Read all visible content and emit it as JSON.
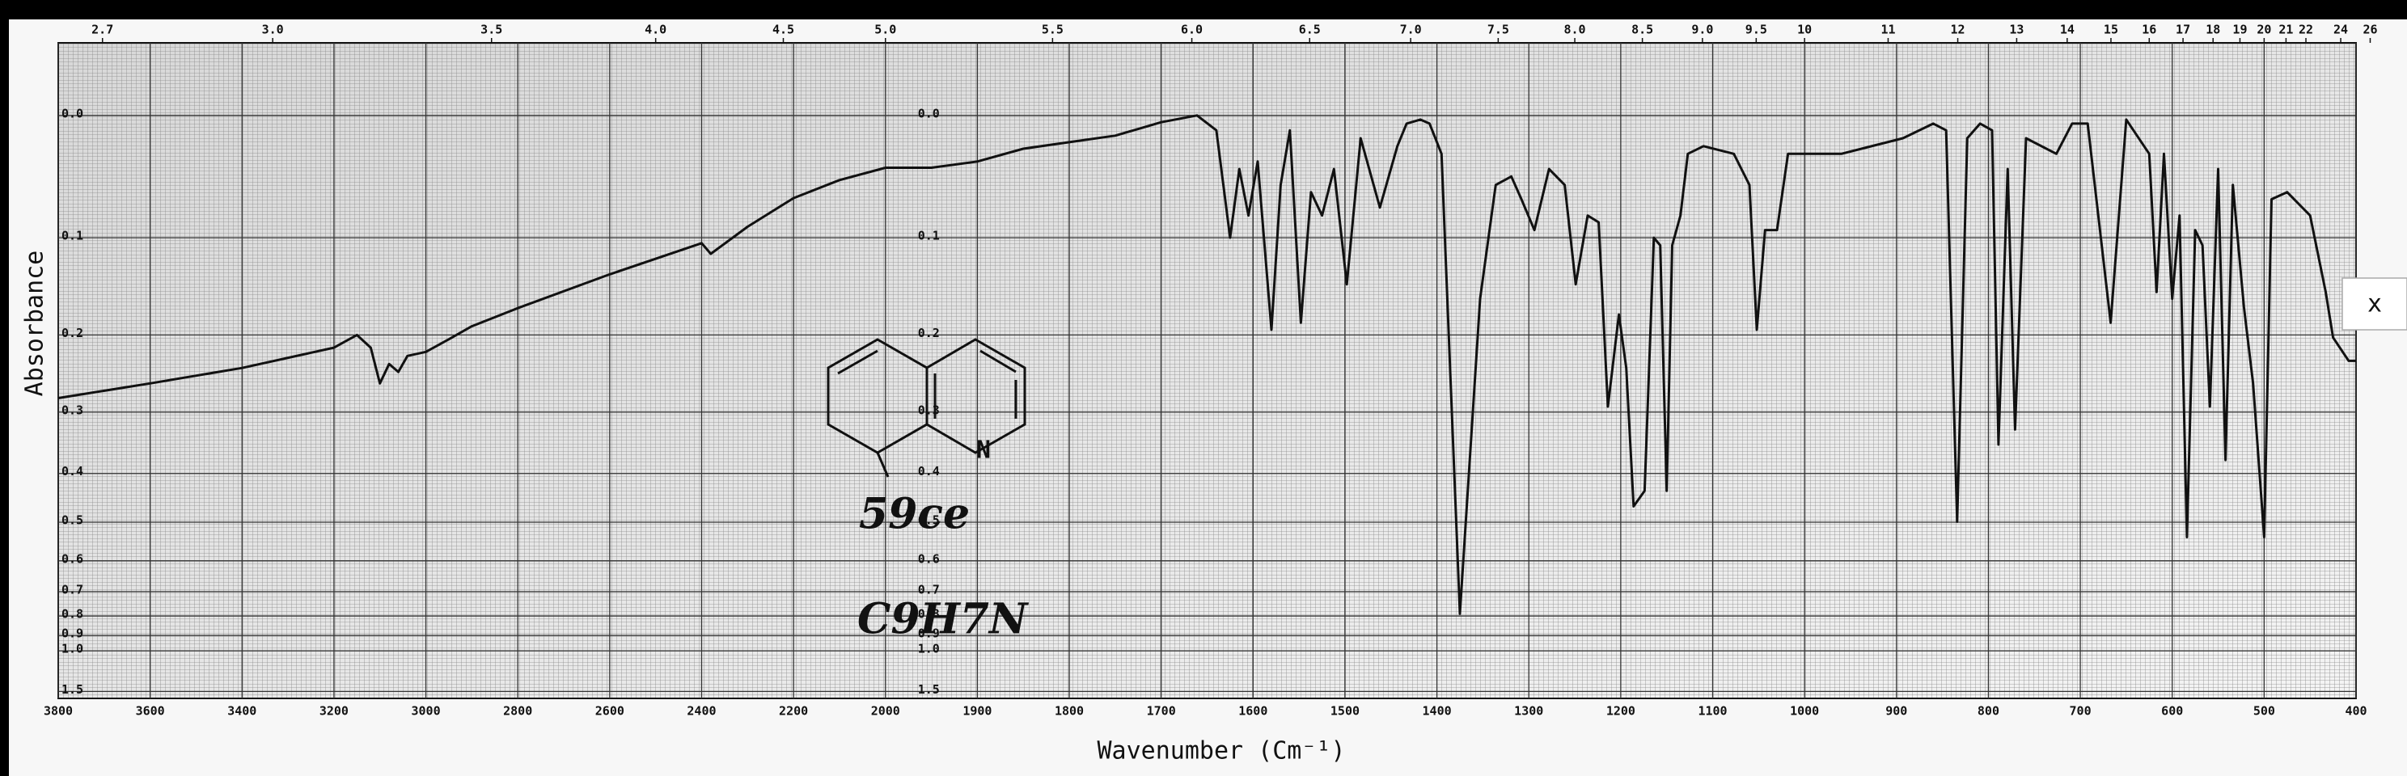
{
  "chart_data": {
    "type": "line",
    "x_label": "Wavenumber (Cm⁻¹)",
    "y_label": "Absorbance",
    "xlim": [
      3800,
      400
    ],
    "x_break": 2000,
    "x_scale_ratio": 2,
    "xticks": [
      3800,
      3600,
      3400,
      3200,
      3000,
      2800,
      2600,
      2400,
      2200,
      2000,
      1900,
      1800,
      1700,
      1600,
      1500,
      1400,
      1300,
      1200,
      1100,
      1000,
      900,
      800,
      700,
      600,
      500,
      400
    ],
    "x2ticks": [
      2.7,
      {
        "value": 3,
        "label": "3.0"
      },
      3.5,
      {
        "value": 4,
        "label": "4.0"
      },
      4.5,
      {
        "value": 5,
        "label": "5.0"
      },
      5.5,
      {
        "value": 6,
        "label": "6.0"
      },
      6.5,
      {
        "value": 7,
        "label": "7.0"
      },
      7.5,
      {
        "value": 8,
        "label": "8.0"
      },
      8.5,
      {
        "value": 9,
        "label": "9.0"
      },
      9.5,
      10,
      11,
      12,
      13,
      14,
      15,
      16,
      17,
      18,
      19,
      20,
      21,
      22,
      24,
      26
    ],
    "ylim": [
      -0.05,
      1.7
    ],
    "yscale": "transmittance",
    "yticks": [
      {
        "value": 0,
        "label": "0.0"
      },
      0.1,
      0.2,
      0.3,
      0.4,
      0.5,
      0.6,
      0.7,
      0.8,
      0.9,
      {
        "value": 1,
        "label": "1.0"
      },
      1.5
    ],
    "grid": true,
    "color": "#111111",
    "x": [
      3800,
      3600,
      3400,
      3200,
      3150,
      3120,
      3100,
      3080,
      3060,
      3040,
      3000,
      2950,
      2900,
      2800,
      2600,
      2400,
      2380,
      2300,
      2200,
      2100,
      2000,
      1950,
      1900,
      1850,
      1800,
      1750,
      1700,
      1661,
      1640,
      1625,
      1615,
      1605,
      1595,
      1580,
      1570,
      1560,
      1548,
      1537,
      1525,
      1512,
      1498,
      1483,
      1462,
      1443,
      1433,
      1418,
      1408,
      1395,
      1375,
      1353,
      1336,
      1319,
      1308,
      1294,
      1278,
      1261,
      1249,
      1236,
      1224,
      1214,
      1202,
      1194,
      1186,
      1174,
      1164,
      1157,
      1150,
      1144,
      1135,
      1127,
      1110,
      1077,
      1060,
      1052,
      1043,
      1030,
      1018,
      960,
      893,
      860,
      846,
      834,
      823,
      809,
      796,
      789,
      779,
      771,
      759,
      726,
      709,
      692,
      667,
      650,
      625,
      617,
      609,
      600,
      592,
      584,
      575,
      567,
      559,
      550,
      542,
      534,
      522,
      512,
      500,
      492,
      475,
      450,
      433,
      425,
      408,
      400
    ],
    "values": [
      0.28,
      0.26,
      0.24,
      0.215,
      0.2,
      0.215,
      0.26,
      0.235,
      0.245,
      0.225,
      0.22,
      0.205,
      0.19,
      0.17,
      0.135,
      0.105,
      0.115,
      0.09,
      0.065,
      0.05,
      0.04,
      0.04,
      0.035,
      0.025,
      0.02,
      0.015,
      0.005,
      0,
      0.011,
      0.1,
      0.041,
      0.08,
      0.035,
      0.194,
      0.054,
      0.011,
      0.186,
      0.06,
      0.08,
      0.041,
      0.145,
      0.017,
      0.073,
      0.023,
      0.006,
      0.003,
      0.006,
      0.029,
      0.79,
      0.16,
      0.054,
      0.047,
      0.066,
      0.093,
      0.041,
      0.054,
      0.145,
      0.08,
      0.086,
      0.292,
      0.177,
      0.24,
      0.465,
      0.433,
      0.1,
      0.107,
      0.433,
      0.107,
      0.08,
      0.029,
      0.023,
      0.029,
      0.054,
      0.194,
      0.093,
      0.093,
      0.029,
      0.029,
      0.017,
      0.006,
      0.011,
      0.499,
      0.017,
      0.006,
      0.011,
      0.35,
      0.041,
      0.326,
      0.017,
      0.029,
      0.006,
      0.006,
      0.186,
      0.003,
      0.029,
      0.153,
      0.029,
      0.16,
      0.08,
      0.536,
      0.093,
      0.107,
      0.292,
      0.041,
      0.376,
      0.054,
      0.169,
      0.26,
      0.536,
      0.066,
      0.06,
      0.08,
      0.153,
      0.203,
      0.231,
      0.231
    ],
    "structure_label": "N",
    "annotations": [
      "59ce",
      "C9H7N"
    ],
    "close_button": "x"
  }
}
